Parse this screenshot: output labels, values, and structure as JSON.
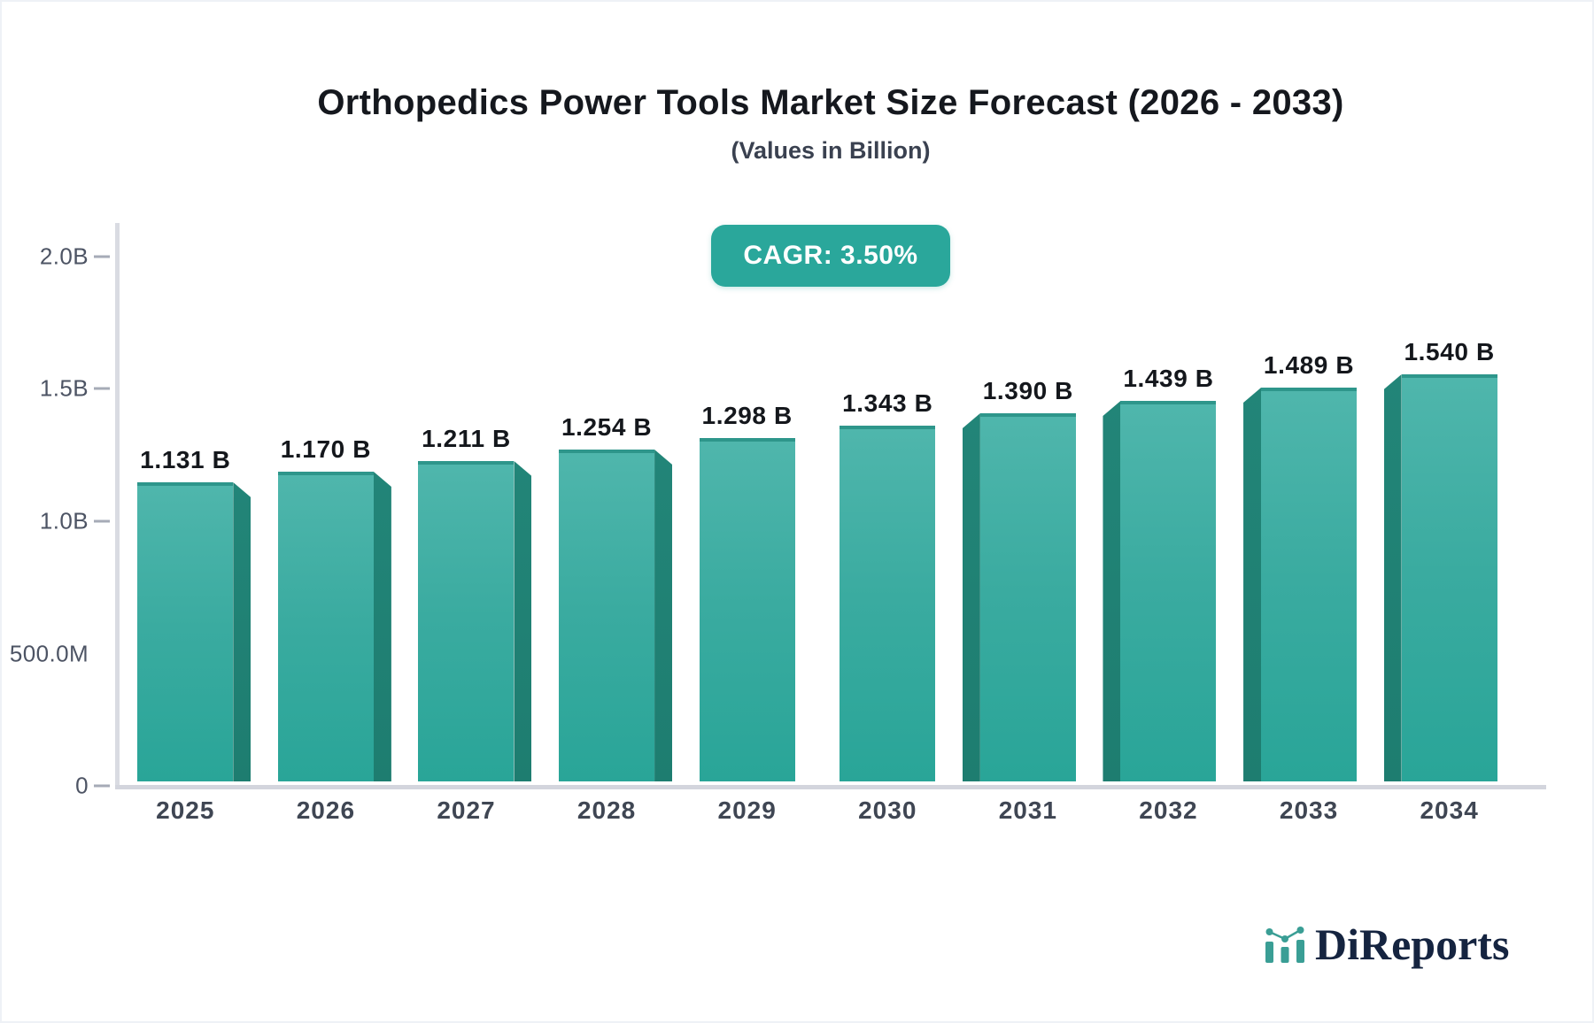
{
  "header": {
    "title": "Orthopedics Power Tools Market Size Forecast (2026 - 2033)",
    "subtitle": "(Values in Billion)",
    "cagr_badge": "CAGR: 3.50%",
    "badge_color": "#2aa79b"
  },
  "chart_data": {
    "type": "bar",
    "title": "Orthopedics Power Tools Market Size Forecast (2026 - 2033)",
    "subtitle": "(Values in Billion)",
    "annotation": "CAGR: 3.50%",
    "categories": [
      "2025",
      "2026",
      "2027",
      "2028",
      "2029",
      "2030",
      "2031",
      "2032",
      "2033",
      "2034"
    ],
    "values_billion": [
      1.131,
      1.17,
      1.211,
      1.254,
      1.298,
      1.343,
      1.39,
      1.439,
      1.489,
      1.54
    ],
    "bar_labels": [
      "1.131 B",
      "1.170 B",
      "1.211 B",
      "1.254 B",
      "1.298 B",
      "1.343 B",
      "1.390 B",
      "1.439 B",
      "1.489 B",
      "1.540 B"
    ],
    "y_axis": [
      {
        "label": "2.0B",
        "tick": true
      },
      {
        "label": "1.5B",
        "tick": true
      },
      {
        "label": "1.0B",
        "tick": true
      },
      {
        "label": "500.0M",
        "tick": false
      },
      {
        "label": "0",
        "tick": true
      }
    ],
    "ylim_billion": [
      0,
      2.0
    ],
    "grid": false,
    "legend": false,
    "colors": {
      "bar_face_top": "#4fb6ac",
      "bar_face_bottom": "#29a598",
      "bar_side_shade": "#1e7d70",
      "bar_top_edge": "#2e968b",
      "axis_line": "#d3d5dd"
    }
  },
  "logo": {
    "text": "DiReports",
    "icon": "mini-bar-chart-logo-icon",
    "text_color": "#152440",
    "icon_color": "#3a9e95"
  }
}
